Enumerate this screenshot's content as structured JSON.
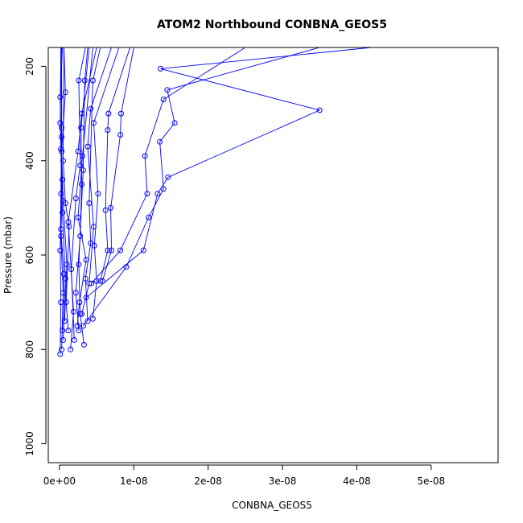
{
  "chart_data": {
    "type": "line",
    "title": "ATOM2 Northbound CONBNA_GEOS5",
    "xlabel": "CONBNA_GEOS5",
    "ylabel": "Pressure (mbar)",
    "xlim": [
      -1.5e-09,
      5.9e-08
    ],
    "ylim": [
      1040,
      160
    ],
    "x_ticks": [
      0,
      1e-08,
      2e-08,
      3e-08,
      4e-08,
      5e-08
    ],
    "x_tick_labels": [
      "0e+00",
      "1e-08",
      "2e-08",
      "3e-08",
      "4e-08",
      "5e-08"
    ],
    "y_ticks": [
      200,
      400,
      600,
      800,
      1000
    ],
    "y_tick_labels": [
      "200",
      "400",
      "600",
      "800",
      "1000"
    ],
    "colors": {
      "series": "#0000ff",
      "axis": "#000000",
      "background": "#ffffff"
    },
    "series": [
      {
        "profiles": [
          [
            [
              1e-10,
              810
            ],
            [
              2e-10,
              700
            ],
            [
              1e-10,
              590
            ],
            [
              2e-10,
              470
            ],
            [
              3e-10,
              330
            ],
            [
              3e-10,
              160
            ]
          ],
          [
            [
              3e-10,
              800
            ],
            [
              5e-10,
              680
            ],
            [
              2e-10,
              560
            ],
            [
              4e-10,
              440
            ],
            [
              1e-10,
              320
            ],
            [
              2e-10,
              160
            ]
          ],
          [
            [
              5e-10,
              780
            ],
            [
              8e-10,
              650
            ],
            [
              4e-10,
              510
            ],
            [
              2e-10,
              375
            ],
            [
              1e-10,
              265
            ],
            [
              4e-10,
              160
            ]
          ],
          [
            [
              4e-10,
              760
            ],
            [
              6e-10,
              640
            ],
            [
              2e-10,
              545
            ],
            [
              3e-10,
              350
            ],
            [
              2e-10,
              160
            ]
          ],
          [
            [
              7e-10,
              740
            ],
            [
              1e-09,
              620
            ],
            [
              5e-10,
              485
            ],
            [
              3e-10,
              380
            ],
            [
              8e-10,
              255
            ],
            [
              6e-10,
              160
            ]
          ],
          [
            [
              1.2e-09,
              760
            ],
            [
              9e-10,
              700
            ],
            [
              1.3e-09,
              540
            ],
            [
              8e-10,
              490
            ],
            [
              5e-10,
              400
            ],
            [
              6e-10,
              160
            ]
          ],
          [
            [
              1.5e-09,
              800
            ],
            [
              1.9e-09,
              720
            ],
            [
              1.2e-09,
              530
            ],
            [
              2.5e-09,
              380
            ],
            [
              3e-09,
              300
            ],
            [
              5e-09,
              160
            ]
          ],
          [
            [
              2e-09,
              780
            ],
            [
              1.6e-09,
              630
            ],
            [
              2.2e-09,
              480
            ],
            [
              2.8e-09,
              410
            ],
            [
              2.6e-09,
              230
            ],
            [
              3.5e-09,
              160
            ]
          ],
          [
            [
              2.6e-09,
              760
            ],
            [
              2.2e-09,
              680
            ],
            [
              2.8e-09,
              560
            ],
            [
              3e-09,
              450
            ],
            [
              2.9e-09,
              330
            ],
            [
              4e-09,
              160
            ]
          ],
          [
            [
              3.3e-09,
              790
            ],
            [
              2.8e-09,
              725
            ],
            [
              2.6e-09,
              620
            ],
            [
              3.2e-09,
              420
            ],
            [
              3.4e-09,
              230
            ],
            [
              3.8e-09,
              160
            ]
          ],
          [
            [
              2.4e-09,
              750
            ],
            [
              2.7e-09,
              700
            ],
            [
              3.6e-09,
              610
            ],
            [
              2.5e-09,
              520
            ],
            [
              3.1e-09,
              390
            ],
            [
              4.5e-09,
              160
            ]
          ],
          [
            [
              3.8e-09,
              740
            ],
            [
              3.5e-09,
              650
            ],
            [
              4.2e-09,
              575
            ],
            [
              4e-09,
              490
            ],
            [
              4.5e-09,
              230
            ],
            [
              5.5e-09,
              160
            ]
          ],
          [
            [
              3e-09,
              725
            ],
            [
              4e-09,
              660
            ],
            [
              4.6e-09,
              540
            ],
            [
              3.8e-09,
              370
            ],
            [
              4.2e-09,
              290
            ],
            [
              7e-09,
              160
            ]
          ],
          [
            [
              4.5e-09,
              735
            ],
            [
              5e-09,
              655
            ],
            [
              4.7e-09,
              580
            ],
            [
              5.2e-09,
              470
            ],
            [
              4.6e-09,
              320
            ],
            [
              8e-09,
              160
            ]
          ],
          [
            [
              5.5e-09,
              655
            ],
            [
              6.5e-09,
              590
            ],
            [
              6.2e-09,
              505
            ],
            [
              6.5e-09,
              335
            ],
            [
              6.6e-09,
              300
            ],
            [
              9.5e-09,
              160
            ]
          ],
          [
            [
              5.8e-09,
              655
            ],
            [
              7e-09,
              590
            ],
            [
              6.9e-09,
              500
            ],
            [
              8.2e-09,
              345
            ],
            [
              8.3e-09,
              300
            ],
            [
              1e-08,
              160
            ]
          ],
          [
            [
              4.3e-09,
              660
            ],
            [
              8.2e-09,
              590
            ],
            [
              1.18e-08,
              470
            ],
            [
              1.15e-08,
              390
            ],
            [
              1.4e-08,
              270
            ],
            [
              2.5e-08,
              160
            ]
          ],
          [
            [
              3.2e-09,
              750
            ],
            [
              9e-09,
              625
            ],
            [
              1.2e-08,
              520
            ],
            [
              1.4e-08,
              460
            ],
            [
              1.35e-08,
              360
            ],
            [
              1.55e-08,
              320
            ],
            [
              1.45e-08,
              250
            ],
            [
              3.5e-08,
              160
            ]
          ],
          [
            [
              3.6e-09,
              690
            ],
            [
              1.13e-08,
              590
            ],
            [
              1.32e-08,
              470
            ],
            [
              1.46e-08,
              435
            ],
            [
              3.5e-08,
              293
            ],
            [
              1.36e-08,
              205
            ],
            [
              4.2e-08,
              160
            ]
          ]
        ]
      }
    ]
  }
}
